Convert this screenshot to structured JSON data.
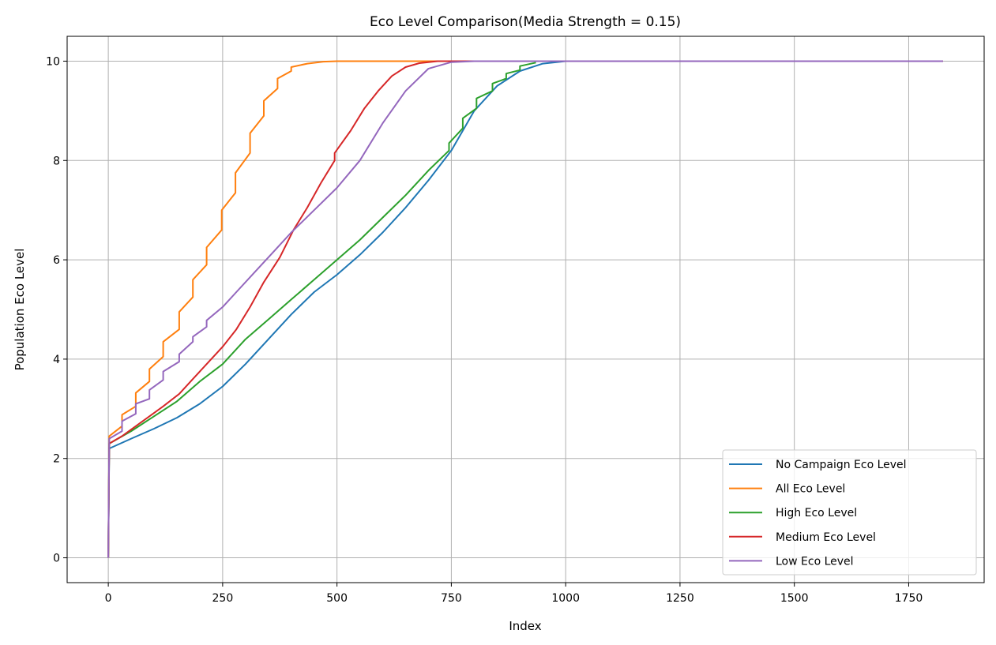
{
  "chart_data": {
    "type": "line",
    "title": "Eco Level Comparison(Media Strength = 0.15)",
    "xlabel": "Index",
    "ylabel": "Population Eco Level",
    "xlim": [
      -90,
      1915
    ],
    "ylim": [
      -0.5,
      10.5
    ],
    "xticks": [
      0,
      250,
      500,
      750,
      1000,
      1250,
      1500,
      1750
    ],
    "xtick_labels": [
      "0",
      "250",
      "500",
      "750",
      "1000",
      "1250",
      "1500",
      "1750"
    ],
    "yticks": [
      0,
      2,
      4,
      6,
      8,
      10
    ],
    "ytick_labels": [
      "0",
      "2",
      "4",
      "6",
      "8",
      "10"
    ],
    "grid": true,
    "legend_position": "lower right",
    "series": [
      {
        "name": "No Campaign Eco Level",
        "color": "#1f77b4",
        "points": [
          [
            0,
            0
          ],
          [
            2,
            2.2
          ],
          [
            50,
            2.4
          ],
          [
            100,
            2.6
          ],
          [
            150,
            2.82
          ],
          [
            200,
            3.1
          ],
          [
            250,
            3.45
          ],
          [
            300,
            3.9
          ],
          [
            350,
            4.4
          ],
          [
            400,
            4.9
          ],
          [
            450,
            5.35
          ],
          [
            500,
            5.7
          ],
          [
            550,
            6.1
          ],
          [
            600,
            6.55
          ],
          [
            650,
            7.05
          ],
          [
            700,
            7.6
          ],
          [
            750,
            8.2
          ],
          [
            800,
            9.0
          ],
          [
            850,
            9.5
          ],
          [
            900,
            9.8
          ],
          [
            950,
            9.95
          ],
          [
            1000,
            10
          ],
          [
            1825,
            10
          ]
        ]
      },
      {
        "name": "All Eco Level",
        "color": "#ff7f0e",
        "points": [
          [
            0,
            0
          ],
          [
            2,
            2.45
          ],
          [
            30,
            2.65
          ],
          [
            30,
            2.88
          ],
          [
            60,
            3.05
          ],
          [
            60,
            3.32
          ],
          [
            90,
            3.55
          ],
          [
            90,
            3.8
          ],
          [
            120,
            4.05
          ],
          [
            120,
            4.35
          ],
          [
            155,
            4.6
          ],
          [
            155,
            4.95
          ],
          [
            185,
            5.25
          ],
          [
            185,
            5.6
          ],
          [
            215,
            5.9
          ],
          [
            215,
            6.25
          ],
          [
            248,
            6.6
          ],
          [
            248,
            7.0
          ],
          [
            278,
            7.35
          ],
          [
            278,
            7.75
          ],
          [
            310,
            8.15
          ],
          [
            310,
            8.55
          ],
          [
            340,
            8.9
          ],
          [
            340,
            9.2
          ],
          [
            370,
            9.45
          ],
          [
            370,
            9.65
          ],
          [
            400,
            9.8
          ],
          [
            400,
            9.88
          ],
          [
            435,
            9.95
          ],
          [
            470,
            9.99
          ],
          [
            500,
            10
          ],
          [
            1825,
            10
          ]
        ]
      },
      {
        "name": "High Eco Level",
        "color": "#2ca02c",
        "points": [
          [
            0,
            0
          ],
          [
            2,
            2.3
          ],
          [
            50,
            2.55
          ],
          [
            100,
            2.85
          ],
          [
            150,
            3.15
          ],
          [
            200,
            3.55
          ],
          [
            250,
            3.9
          ],
          [
            300,
            4.4
          ],
          [
            350,
            4.8
          ],
          [
            400,
            5.2
          ],
          [
            450,
            5.6
          ],
          [
            500,
            6.0
          ],
          [
            550,
            6.4
          ],
          [
            600,
            6.85
          ],
          [
            650,
            7.3
          ],
          [
            700,
            7.8
          ],
          [
            745,
            8.2
          ],
          [
            745,
            8.35
          ],
          [
            775,
            8.65
          ],
          [
            775,
            8.85
          ],
          [
            805,
            9.05
          ],
          [
            805,
            9.25
          ],
          [
            840,
            9.4
          ],
          [
            840,
            9.55
          ],
          [
            870,
            9.65
          ],
          [
            870,
            9.75
          ],
          [
            900,
            9.82
          ],
          [
            900,
            9.9
          ],
          [
            935,
            9.97
          ]
        ]
      },
      {
        "name": "Medium Eco Level",
        "color": "#d62728",
        "points": [
          [
            0,
            0
          ],
          [
            2,
            2.3
          ],
          [
            30,
            2.45
          ],
          [
            60,
            2.65
          ],
          [
            90,
            2.85
          ],
          [
            120,
            3.05
          ],
          [
            155,
            3.3
          ],
          [
            185,
            3.6
          ],
          [
            215,
            3.9
          ],
          [
            250,
            4.25
          ],
          [
            280,
            4.6
          ],
          [
            310,
            5.05
          ],
          [
            340,
            5.55
          ],
          [
            375,
            6.05
          ],
          [
            405,
            6.6
          ],
          [
            435,
            7.05
          ],
          [
            465,
            7.55
          ],
          [
            495,
            8.0
          ],
          [
            495,
            8.15
          ],
          [
            530,
            8.6
          ],
          [
            560,
            9.05
          ],
          [
            590,
            9.4
          ],
          [
            620,
            9.7
          ],
          [
            650,
            9.88
          ],
          [
            680,
            9.96
          ],
          [
            720,
            10
          ],
          [
            1825,
            10
          ]
        ]
      },
      {
        "name": "Low Eco Level",
        "color": "#9467bd",
        "points": [
          [
            0,
            0
          ],
          [
            2,
            2.4
          ],
          [
            30,
            2.55
          ],
          [
            30,
            2.75
          ],
          [
            60,
            2.9
          ],
          [
            60,
            3.1
          ],
          [
            90,
            3.2
          ],
          [
            90,
            3.38
          ],
          [
            120,
            3.58
          ],
          [
            120,
            3.75
          ],
          [
            155,
            3.95
          ],
          [
            155,
            4.1
          ],
          [
            185,
            4.35
          ],
          [
            185,
            4.45
          ],
          [
            215,
            4.65
          ],
          [
            215,
            4.78
          ],
          [
            250,
            5.05
          ],
          [
            280,
            5.35
          ],
          [
            320,
            5.75
          ],
          [
            360,
            6.15
          ],
          [
            400,
            6.55
          ],
          [
            450,
            7.0
          ],
          [
            500,
            7.45
          ],
          [
            550,
            8.0
          ],
          [
            600,
            8.75
          ],
          [
            650,
            9.4
          ],
          [
            700,
            9.85
          ],
          [
            750,
            9.98
          ],
          [
            800,
            10
          ],
          [
            1825,
            10
          ]
        ]
      }
    ]
  }
}
